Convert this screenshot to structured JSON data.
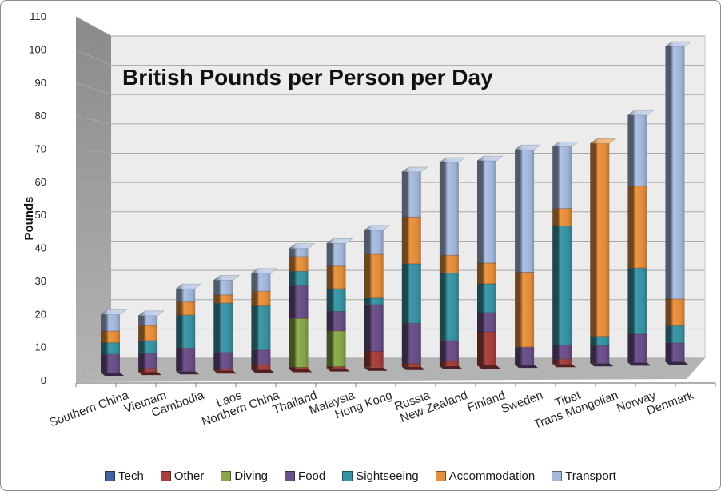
{
  "chart_data": {
    "type": "bar",
    "subtype": "stacked-3d",
    "title": "British Pounds per Person per Day",
    "ylabel": "Pounds",
    "ylim": [
      0,
      110
    ],
    "ytick_step": 10,
    "yticks": [
      0,
      10,
      20,
      30,
      40,
      50,
      60,
      70,
      80,
      90,
      100,
      110
    ],
    "grid": true,
    "legend_position": "bottom",
    "categories": [
      "Southern China",
      "Vietnam",
      "Cambodia",
      "Laos",
      "Northern China",
      "Thailand",
      "Malaysia",
      "Hong Kong",
      "Russia",
      "New Zealand",
      "Finland",
      "Sweden",
      "Tibet",
      "Trans Mongolian",
      "Norway",
      "Denmark"
    ],
    "series": [
      {
        "name": "Tech",
        "color": "#41639e",
        "values": [
          0,
          0,
          0,
          0,
          0,
          0,
          0,
          0,
          0,
          0,
          0,
          0,
          0,
          0,
          0,
          0
        ]
      },
      {
        "name": "Other",
        "color": "#a5403d",
        "values": [
          0,
          1,
          0,
          0.5,
          1.5,
          0.5,
          0.5,
          5,
          1,
          1.5,
          10.5,
          0,
          1.5,
          0,
          0,
          0
        ]
      },
      {
        "name": "Diving",
        "color": "#88a84b",
        "values": [
          0,
          0,
          0,
          0,
          0,
          15,
          11,
          0,
          0,
          0,
          0,
          0,
          0,
          0,
          0,
          0
        ]
      },
      {
        "name": "Food",
        "color": "#6b5088",
        "values": [
          5.5,
          4.5,
          7,
          5,
          4.5,
          10,
          6,
          14.5,
          12.5,
          6.5,
          6,
          5.5,
          4.5,
          5.5,
          9,
          6
        ]
      },
      {
        "name": "Sightseeing",
        "color": "#3a93a3",
        "values": [
          3.5,
          4,
          10,
          15,
          13.5,
          4.5,
          7,
          2,
          18.5,
          21,
          9,
          0,
          37.5,
          3,
          21,
          5.5
        ]
      },
      {
        "name": "Accommodation",
        "color": "#e58f3d",
        "values": [
          3.5,
          4.5,
          4,
          2.5,
          4.5,
          4.5,
          7,
          13.5,
          14.5,
          5.5,
          6.5,
          23.5,
          5.5,
          61,
          26,
          8.5
        ]
      },
      {
        "name": "Transport",
        "color": "#a5b9dc",
        "values": [
          5,
          3,
          4,
          4.5,
          5.5,
          2.5,
          7,
          7.5,
          14,
          29,
          32,
          38.5,
          19.5,
          0,
          22.5,
          80.5
        ]
      }
    ],
    "totals": [
      17.5,
      17,
      25,
      27.5,
      29.5,
      37,
      38.5,
      42.5,
      60.5,
      63.5,
      64,
      67.5,
      68.5,
      69.5,
      78.5,
      100.5
    ],
    "colors_misc": {
      "back_wall": "#ececec",
      "side_wall_top": "#8a8a8a",
      "side_wall_bottom": "#b4b4b4",
      "floor": "#b3b3b3",
      "gridline": "#a6a6a6",
      "axis_line": "#7f7f7f",
      "text": "#262626"
    }
  }
}
